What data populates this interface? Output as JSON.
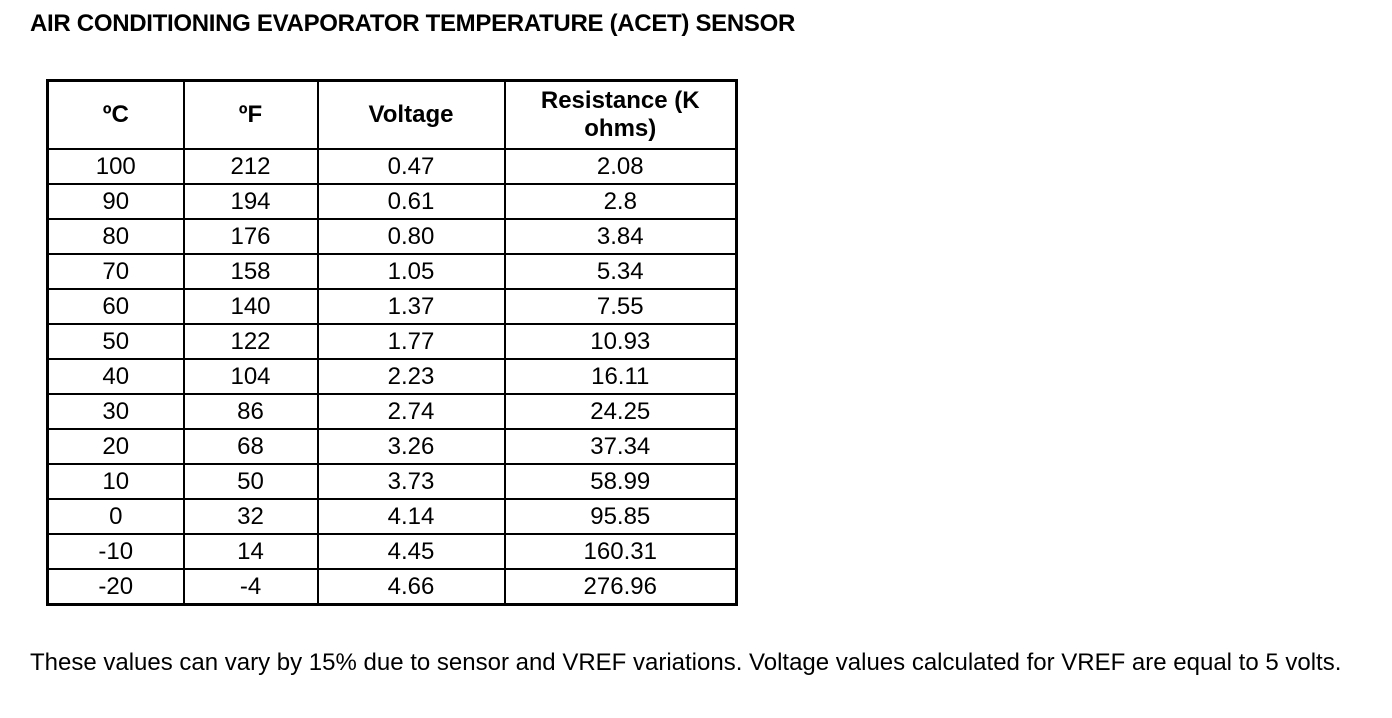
{
  "title": "AIR CONDITIONING EVAPORATOR TEMPERATURE (ACET) SENSOR",
  "table": {
    "header": [
      "ºC",
      "ºF",
      "Voltage",
      "Resistance (K ohms)"
    ],
    "rows": [
      [
        "100",
        "212",
        "0.47",
        "2.08"
      ],
      [
        "90",
        "194",
        "0.61",
        "2.8"
      ],
      [
        "80",
        "176",
        "0.80",
        "3.84"
      ],
      [
        "70",
        "158",
        "1.05",
        "5.34"
      ],
      [
        "60",
        "140",
        "1.37",
        "7.55"
      ],
      [
        "50",
        "122",
        "1.77",
        "10.93"
      ],
      [
        "40",
        "104",
        "2.23",
        "16.11"
      ],
      [
        "30",
        "86",
        "2.74",
        "24.25"
      ],
      [
        "20",
        "68",
        "3.26",
        "37.34"
      ],
      [
        "10",
        "50",
        "3.73",
        "58.99"
      ],
      [
        "0",
        "32",
        "4.14",
        "95.85"
      ],
      [
        "-10",
        "14",
        "4.45",
        "160.31"
      ],
      [
        "-20",
        "-4",
        "4.66",
        "276.96"
      ]
    ]
  },
  "note": "These values can vary by 15% due to sensor and VREF variations. Voltage values calculated for VREF are equal to 5 volts."
}
